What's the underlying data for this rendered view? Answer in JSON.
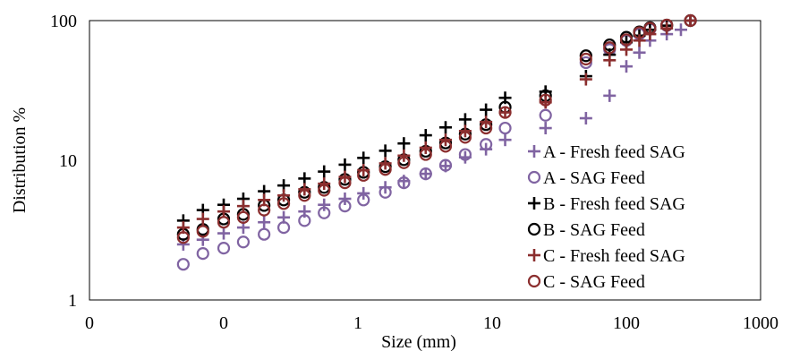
{
  "chart_data": {
    "type": "scatter",
    "xlabel": "Size (mm)",
    "ylabel": "Distribution %",
    "x_scale": "log",
    "y_scale": "log",
    "xlim": [
      0.01,
      1000
    ],
    "ylim": [
      1,
      100
    ],
    "x_tick_labels": [
      "0",
      "0",
      "1",
      "10",
      "100",
      "1000"
    ],
    "y_tick_labels": [
      "1",
      "10",
      "100"
    ],
    "grid": false,
    "legend_position": "right",
    "series": [
      {
        "name": "A - Fresh feed SAG",
        "marker": "plus",
        "color": "#8064A2",
        "points": [
          [
            0.05,
            2.5
          ],
          [
            0.07,
            2.7
          ],
          [
            0.1,
            3.0
          ],
          [
            0.14,
            3.3
          ],
          [
            0.2,
            3.6
          ],
          [
            0.28,
            3.9
          ],
          [
            0.4,
            4.3
          ],
          [
            0.56,
            4.8
          ],
          [
            0.8,
            5.3
          ],
          [
            1.1,
            5.8
          ],
          [
            1.6,
            6.4
          ],
          [
            2.2,
            7.1
          ],
          [
            3.2,
            8.0
          ],
          [
            4.5,
            9.1
          ],
          [
            6.3,
            10.5
          ],
          [
            9,
            12.0
          ],
          [
            12.5,
            14.0
          ],
          [
            25,
            17.0
          ],
          [
            50,
            20.0
          ],
          [
            75,
            29.0
          ],
          [
            100,
            47.0
          ],
          [
            125,
            59.0
          ],
          [
            150,
            72.0
          ],
          [
            200,
            80.0
          ],
          [
            255,
            86.0
          ],
          [
            300,
            100.0
          ]
        ]
      },
      {
        "name": "A - SAG Feed",
        "marker": "circle",
        "color": "#8064A2",
        "points": [
          [
            0.05,
            1.8
          ],
          [
            0.07,
            2.15
          ],
          [
            0.1,
            2.35
          ],
          [
            0.14,
            2.6
          ],
          [
            0.2,
            2.95
          ],
          [
            0.28,
            3.3
          ],
          [
            0.4,
            3.7
          ],
          [
            0.56,
            4.2
          ],
          [
            0.8,
            4.7
          ],
          [
            1.1,
            5.2
          ],
          [
            1.6,
            5.9
          ],
          [
            2.2,
            6.9
          ],
          [
            3.2,
            8.0
          ],
          [
            4.5,
            9.2
          ],
          [
            6.3,
            11.0
          ],
          [
            9,
            13.0
          ],
          [
            12.5,
            17.0
          ],
          [
            25,
            21.0
          ],
          [
            50,
            50.0
          ],
          [
            75,
            62.0
          ],
          [
            100,
            72.0
          ],
          [
            125,
            80.0
          ],
          [
            150,
            87.0
          ],
          [
            200,
            92.0
          ],
          [
            300,
            100.0
          ]
        ]
      },
      {
        "name": "B - Fresh feed SAG",
        "marker": "plus",
        "color": "#000000",
        "points": [
          [
            0.05,
            3.7
          ],
          [
            0.07,
            4.4
          ],
          [
            0.1,
            4.8
          ],
          [
            0.14,
            5.3
          ],
          [
            0.2,
            6.0
          ],
          [
            0.28,
            6.6
          ],
          [
            0.4,
            7.4
          ],
          [
            0.56,
            8.3
          ],
          [
            0.8,
            9.3
          ],
          [
            1.1,
            10.4
          ],
          [
            1.6,
            11.7
          ],
          [
            2.2,
            13.2
          ],
          [
            3.2,
            15.1
          ],
          [
            4.5,
            17.2
          ],
          [
            6.3,
            19.6
          ],
          [
            9,
            23.0
          ],
          [
            12.5,
            28.0
          ],
          [
            25,
            31.0
          ],
          [
            50,
            40.0
          ],
          [
            75,
            57.0
          ],
          [
            100,
            70.0
          ],
          [
            125,
            78.0
          ],
          [
            150,
            86.0
          ],
          [
            200,
            92.0
          ],
          [
            300,
            100.0
          ]
        ]
      },
      {
        "name": "B - SAG Feed",
        "marker": "circle",
        "color": "#000000",
        "points": [
          [
            0.05,
            2.95
          ],
          [
            0.07,
            3.2
          ],
          [
            0.1,
            3.8
          ],
          [
            0.14,
            4.1
          ],
          [
            0.2,
            4.75
          ],
          [
            0.28,
            5.2
          ],
          [
            0.4,
            5.9
          ],
          [
            0.56,
            6.4
          ],
          [
            0.8,
            7.3
          ],
          [
            1.1,
            8.2
          ],
          [
            1.6,
            9.0
          ],
          [
            2.2,
            10.1
          ],
          [
            3.2,
            11.6
          ],
          [
            4.5,
            13.3
          ],
          [
            6.3,
            15.4
          ],
          [
            9,
            18.0
          ],
          [
            12.5,
            24.0
          ],
          [
            25,
            29.0
          ],
          [
            50,
            56.0
          ],
          [
            75,
            67.0
          ],
          [
            100,
            76.0
          ],
          [
            125,
            83.0
          ],
          [
            150,
            89.0
          ],
          [
            200,
            93.0
          ],
          [
            300,
            100.0
          ]
        ]
      },
      {
        "name": "C - Fresh feed SAG",
        "marker": "plus",
        "color": "#8B2E2E",
        "points": [
          [
            0.05,
            3.3
          ],
          [
            0.07,
            3.8
          ],
          [
            0.1,
            4.3
          ],
          [
            0.14,
            4.7
          ],
          [
            0.2,
            5.2
          ],
          [
            0.28,
            5.6
          ],
          [
            0.4,
            6.2
          ],
          [
            0.56,
            6.8
          ],
          [
            0.8,
            7.6
          ],
          [
            1.1,
            8.5
          ],
          [
            1.6,
            9.5
          ],
          [
            2.2,
            10.8
          ],
          [
            3.2,
            12.3
          ],
          [
            4.5,
            14.0
          ],
          [
            6.3,
            16.2
          ],
          [
            9,
            18.8
          ],
          [
            12.5,
            22.0
          ],
          [
            25,
            26.0
          ],
          [
            50,
            38.0
          ],
          [
            75,
            52.0
          ],
          [
            100,
            62.0
          ],
          [
            125,
            72.0
          ],
          [
            150,
            80.0
          ],
          [
            200,
            88.0
          ],
          [
            300,
            100.0
          ]
        ]
      },
      {
        "name": "C - SAG Feed",
        "marker": "circle",
        "color": "#8B2E2E",
        "points": [
          [
            0.05,
            2.8
          ],
          [
            0.07,
            3.1
          ],
          [
            0.1,
            3.6
          ],
          [
            0.14,
            3.9
          ],
          [
            0.2,
            4.4
          ],
          [
            0.28,
            4.9
          ],
          [
            0.4,
            5.6
          ],
          [
            0.56,
            6.1
          ],
          [
            0.8,
            6.9
          ],
          [
            1.1,
            7.8
          ],
          [
            1.6,
            8.6
          ],
          [
            2.2,
            9.6
          ],
          [
            3.2,
            11.0
          ],
          [
            4.5,
            12.6
          ],
          [
            6.3,
            14.6
          ],
          [
            9,
            17.0
          ],
          [
            12.5,
            22.0
          ],
          [
            25,
            27.0
          ],
          [
            50,
            53.0
          ],
          [
            75,
            64.0
          ],
          [
            100,
            73.0
          ],
          [
            125,
            82.0
          ],
          [
            150,
            88.0
          ],
          [
            200,
            93.0
          ],
          [
            300,
            100.0
          ]
        ]
      }
    ]
  }
}
